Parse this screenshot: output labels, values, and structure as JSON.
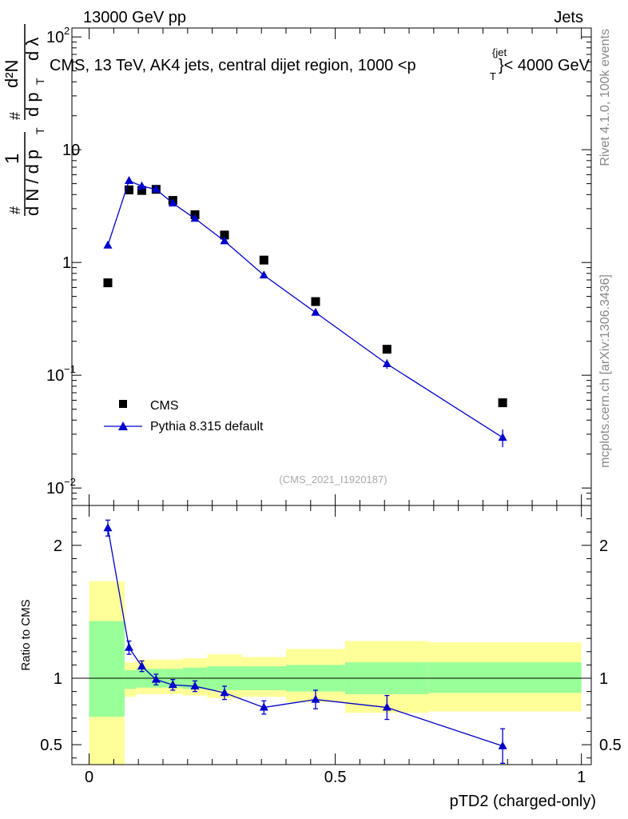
{
  "header": {
    "left_label": "13000 GeV pp",
    "right_label": "Jets",
    "side_label_top": "Rivet 4.1.0,  100k events",
    "side_label_bottom": "mcplots.cern.ch [arXiv:1306.3436]",
    "analysis_ref": "(CMS_2021_I1920187)"
  },
  "chart_data": [
    {
      "type": "scatter",
      "title": "CMS, 13 TeV, AK4 jets, central dijet region, 1000 <p_T^{jet}< 4000 GeV",
      "title_parts": {
        "before": "CMS, 13 TeV, AK4 jets, central dijet region, 1000 <",
        "p": "p",
        "sub": "T",
        "sup": "{jet",
        "after": "}< 4000 GeV"
      },
      "ylabel_parts": {
        "hash": "#",
        "one": "1",
        "denominator": "d N / d p",
        "denominator_sub": "T",
        "numerator_hash": "#",
        "numerator": "d²N",
        "numerator_den": "d p",
        "numerator_den_sub": "T",
        "lambda": "d λ"
      },
      "yscale": "log",
      "ylim": [
        0.007,
        120
      ],
      "xlim": [
        -0.035,
        1.02
      ],
      "y_ticks": [
        {
          "value": 100,
          "label": "10",
          "exp": "2"
        },
        {
          "value": 10,
          "label": "10",
          "exp": ""
        },
        {
          "value": 1,
          "label": "1",
          "exp": ""
        },
        {
          "value": 0.1,
          "label": "10",
          "exp": "−1"
        },
        {
          "value": 0.01,
          "label": "10",
          "exp": "−2"
        }
      ],
      "legend": [
        {
          "name": "CMS",
          "marker": "square",
          "color": "#000000"
        },
        {
          "name": "Pythia 8.315 default",
          "marker": "triangle",
          "color": "#0000cc"
        }
      ],
      "series": [
        {
          "name": "CMS",
          "x": [
            0.038,
            0.081,
            0.107,
            0.136,
            0.17,
            0.215,
            0.275,
            0.355,
            0.46,
            0.605,
            0.84
          ],
          "y": [
            0.66,
            4.4,
            4.35,
            4.45,
            3.55,
            2.65,
            1.75,
            1.05,
            0.45,
            0.17,
            0.057
          ]
        },
        {
          "name": "Pythia 8.315 default",
          "x": [
            0.038,
            0.081,
            0.107,
            0.136,
            0.17,
            0.215,
            0.275,
            0.355,
            0.46,
            0.605,
            0.84
          ],
          "y": [
            1.42,
            5.3,
            4.75,
            4.45,
            3.35,
            2.45,
            1.55,
            0.77,
            0.36,
            0.126,
            0.028
          ],
          "err_lo": [
            0.06,
            0.2,
            0.15,
            0.12,
            0.1,
            0.08,
            0.05,
            0.03,
            0.02,
            0.012,
            0.005
          ],
          "err_hi": [
            0.06,
            0.2,
            0.15,
            0.12,
            0.1,
            0.08,
            0.05,
            0.03,
            0.02,
            0.012,
            0.005
          ]
        }
      ]
    },
    {
      "type": "line",
      "ylabel": "Ratio to CMS",
      "xlabel": "pTD2 (charged-only)",
      "ylim": [
        0.35,
        2.3
      ],
      "xlim": [
        -0.035,
        1.02
      ],
      "x_ticks": [
        {
          "value": 0,
          "label": "0"
        },
        {
          "value": 0.5,
          "label": "0.5"
        },
        {
          "value": 1,
          "label": "1"
        }
      ],
      "y_ticks": [
        {
          "value": 2,
          "label": "2"
        },
        {
          "value": 1,
          "label": "1"
        },
        {
          "value": 0.5,
          "label": "0.5"
        }
      ],
      "bands": {
        "edges": [
          0.0,
          0.072,
          0.095,
          0.12,
          0.152,
          0.19,
          0.24,
          0.31,
          0.4,
          0.52,
          0.69,
          1.0
        ],
        "inner_lo": [
          0.71,
          0.92,
          0.93,
          0.93,
          0.93,
          0.92,
          0.91,
          0.91,
          0.9,
          0.88,
          0.89
        ],
        "inner_hi": [
          1.43,
          1.06,
          1.07,
          1.07,
          1.07,
          1.08,
          1.09,
          1.09,
          1.1,
          1.12,
          1.12
        ],
        "outer_lo": [
          0.3,
          0.86,
          0.88,
          0.88,
          0.88,
          0.87,
          0.85,
          0.86,
          0.82,
          0.74,
          0.75
        ],
        "outer_hi": [
          1.73,
          1.12,
          1.14,
          1.14,
          1.14,
          1.15,
          1.18,
          1.16,
          1.22,
          1.28,
          1.27
        ],
        "inner_color": "#99ff99",
        "outer_color": "#ffff99"
      },
      "series": [
        {
          "name": "Pythia 8.315 default / CMS",
          "x": [
            0.038,
            0.081,
            0.107,
            0.136,
            0.17,
            0.215,
            0.275,
            0.355,
            0.46,
            0.605,
            0.84
          ],
          "y": [
            2.13,
            1.23,
            1.09,
            0.99,
            0.95,
            0.94,
            0.89,
            0.78,
            0.84,
            0.78,
            0.49
          ],
          "err_lo": [
            0.06,
            0.05,
            0.04,
            0.04,
            0.04,
            0.04,
            0.05,
            0.05,
            0.07,
            0.09,
            0.13
          ],
          "err_hi": [
            0.06,
            0.05,
            0.04,
            0.04,
            0.04,
            0.04,
            0.05,
            0.05,
            0.07,
            0.09,
            0.13
          ]
        }
      ]
    }
  ]
}
